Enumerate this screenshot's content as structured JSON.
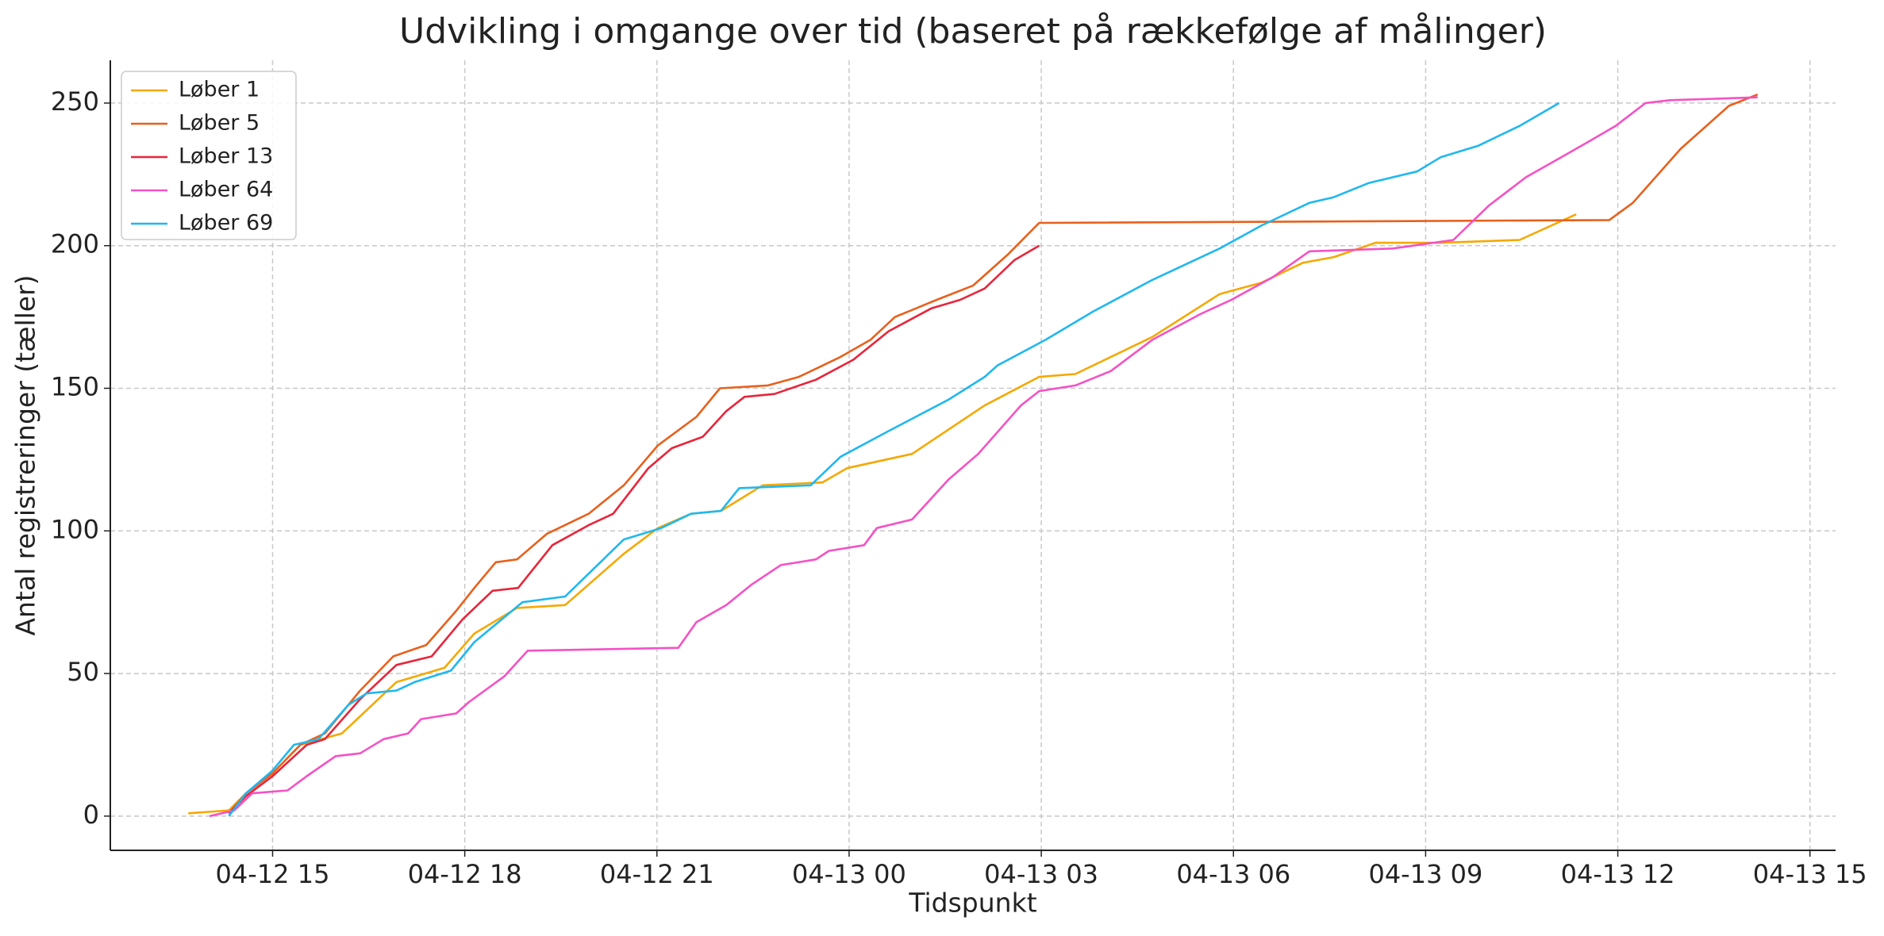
{
  "chart_data": {
    "type": "line",
    "title": "Udvikling i omgange over tid (baseret på rækkefølge af målinger)",
    "x_label": "Tidspunkt",
    "y_label": "Antal registreringer (tæller)",
    "xlim": [
      "04-12 12:28",
      "04-13 15:24"
    ],
    "xticks": [
      "04-12 15",
      "04-12 18",
      "04-12 21",
      "04-13 00",
      "04-13 03",
      "04-13 06",
      "04-13 09",
      "04-13 12",
      "04-13 15"
    ],
    "ylim": [
      -12,
      265
    ],
    "yticks": [
      0,
      50,
      100,
      150,
      200,
      250
    ],
    "grid": true,
    "legend": "upper left",
    "series": [
      {
        "name": "Løber 1",
        "color": "#f5a800",
        "x": [
          "04-12 13:41",
          "04-12 14:19",
          "04-12 14:35",
          "04-12 15:00",
          "04-12 15:26",
          "04-12 16:05",
          "04-12 16:56",
          "04-12 17:41",
          "04-12 18:09",
          "04-12 18:49",
          "04-12 19:34",
          "04-12 20:29",
          "04-12 21:01",
          "04-12 21:32",
          "04-12 22:00",
          "04-12 22:39",
          "04-12 23:35",
          "04-12 23:58",
          "04-13 00:59",
          "04-13 02:07",
          "04-13 02:58",
          "04-13 03:32",
          "04-13 04:44",
          "04-13 05:47",
          "04-13 06:26",
          "04-13 07:05",
          "04-13 07:34",
          "04-13 08:13",
          "04-13 09:14",
          "04-13 10:28",
          "04-13 11:21"
        ],
        "values": [
          1,
          2,
          8,
          15,
          25,
          29,
          47,
          52,
          64,
          73,
          74,
          92,
          101,
          106,
          107,
          116,
          117,
          122,
          127,
          144,
          154,
          155,
          168,
          183,
          187,
          194,
          196,
          201,
          201,
          202,
          211
        ]
      },
      {
        "name": "Løber 5",
        "color": "#e8601c",
        "x": [
          "04-12 14:19",
          "04-12 14:35",
          "04-12 15:00",
          "04-12 15:26",
          "04-12 15:49",
          "04-12 16:22",
          "04-12 16:53",
          "04-12 17:24",
          "04-12 17:52",
          "04-12 18:09",
          "04-12 18:29",
          "04-12 18:49",
          "04-12 19:17",
          "04-12 19:56",
          "04-12 20:29",
          "04-12 21:01",
          "04-12 21:37",
          "04-12 21:59",
          "04-12 22:44",
          "04-12 23:13",
          "04-12 23:52",
          "04-13 00:20",
          "04-13 00:43",
          "04-13 01:22",
          "04-13 01:56",
          "04-13 02:29",
          "04-13 02:58",
          "04-13 11:52",
          "04-13 12:14",
          "04-13 12:59",
          "04-13 13:44",
          "04-13 14:11"
        ],
        "values": [
          1,
          8,
          15,
          25,
          29,
          44,
          56,
          60,
          72,
          80,
          89,
          90,
          99,
          106,
          116,
          130,
          140,
          150,
          151,
          154,
          161,
          167,
          175,
          181,
          186,
          197,
          208,
          209,
          215,
          234,
          249,
          253
        ]
      },
      {
        "name": "Løber 13",
        "color": "#e8253a",
        "x": [
          "04-12 14:19",
          "04-12 14:35",
          "04-12 15:00",
          "04-12 15:32",
          "04-12 15:49",
          "04-12 16:22",
          "04-12 16:56",
          "04-12 17:29",
          "04-12 17:58",
          "04-12 18:26",
          "04-12 18:50",
          "04-12 19:22",
          "04-12 19:56",
          "04-12 20:19",
          "04-12 20:52",
          "04-12 21:14",
          "04-12 21:43",
          "04-12 22:05",
          "04-12 22:22",
          "04-12 22:50",
          "04-12 23:29",
          "04-13 00:04",
          "04-13 00:37",
          "04-13 01:17",
          "04-13 01:44",
          "04-13 02:07",
          "04-13 02:35",
          "04-13 02:58"
        ],
        "values": [
          1,
          7,
          14,
          25,
          27,
          41,
          53,
          56,
          69,
          79,
          80,
          95,
          102,
          106,
          122,
          129,
          133,
          142,
          147,
          148,
          153,
          160,
          170,
          178,
          181,
          185,
          195,
          200
        ]
      },
      {
        "name": "Løber 64",
        "color": "#f551c4",
        "x": [
          "04-12 14:01",
          "04-12 14:24",
          "04-12 14:41",
          "04-12 15:14",
          "04-12 15:32",
          "04-12 15:59",
          "04-12 16:22",
          "04-12 16:44",
          "04-12 17:07",
          "04-12 17:19",
          "04-12 17:52",
          "04-12 18:04",
          "04-12 18:37",
          "04-12 18:59",
          "04-12 21:20",
          "04-12 21:37",
          "04-12 22:05",
          "04-12 22:28",
          "04-12 22:56",
          "04-12 23:29",
          "04-12 23:41",
          "04-13 00:14",
          "04-13 00:26",
          "04-13 00:59",
          "04-13 01:33",
          "04-13 02:01",
          "04-13 02:41",
          "04-13 02:58",
          "04-13 03:32",
          "04-13 04:05",
          "04-13 04:44",
          "04-13 05:29",
          "04-13 05:58",
          "04-13 06:37",
          "04-13 07:11",
          "04-13 08:29",
          "04-13 09:26",
          "04-13 09:59",
          "04-13 10:34",
          "04-13 11:07",
          "04-13 11:35",
          "04-13 11:58",
          "04-13 12:26",
          "04-13 12:49",
          "04-13 14:11"
        ],
        "values": [
          0,
          2,
          8,
          9,
          14,
          21,
          22,
          27,
          29,
          34,
          36,
          40,
          49,
          58,
          59,
          68,
          74,
          81,
          88,
          90,
          93,
          95,
          101,
          104,
          118,
          127,
          144,
          149,
          151,
          156,
          167,
          176,
          181,
          189,
          198,
          199,
          202,
          214,
          224,
          231,
          237,
          242,
          250,
          251,
          252
        ]
      },
      {
        "name": "Løber 69",
        "color": "#1fb8f0",
        "x": [
          "04-12 14:19",
          "04-12 14:35",
          "04-12 15:00",
          "04-12 15:20",
          "04-12 15:43",
          "04-12 16:11",
          "04-12 16:28",
          "04-12 16:56",
          "04-12 17:13",
          "04-12 17:47",
          "04-12 18:09",
          "04-12 18:54",
          "04-12 19:34",
          "04-12 19:56",
          "04-12 20:29",
          "04-12 21:04",
          "04-12 21:32",
          "04-12 22:00",
          "04-12 22:17",
          "04-12 23:24",
          "04-12 23:52",
          "04-13 00:37",
          "04-13 01:33",
          "04-13 02:07",
          "04-13 02:19",
          "04-13 03:04",
          "04-13 03:49",
          "04-13 04:44",
          "04-13 05:47",
          "04-13 06:26",
          "04-13 07:11",
          "04-13 07:34",
          "04-13 08:07",
          "04-13 08:52",
          "04-13 09:14",
          "04-13 09:49",
          "04-13 10:28",
          "04-13 11:05"
        ],
        "values": [
          0,
          8,
          16,
          25,
          27,
          39,
          43,
          44,
          47,
          51,
          61,
          75,
          77,
          85,
          97,
          101,
          106,
          107,
          115,
          116,
          126,
          135,
          146,
          154,
          158,
          167,
          177,
          188,
          199,
          207,
          215,
          217,
          222,
          226,
          231,
          235,
          242,
          250
        ]
      }
    ]
  }
}
